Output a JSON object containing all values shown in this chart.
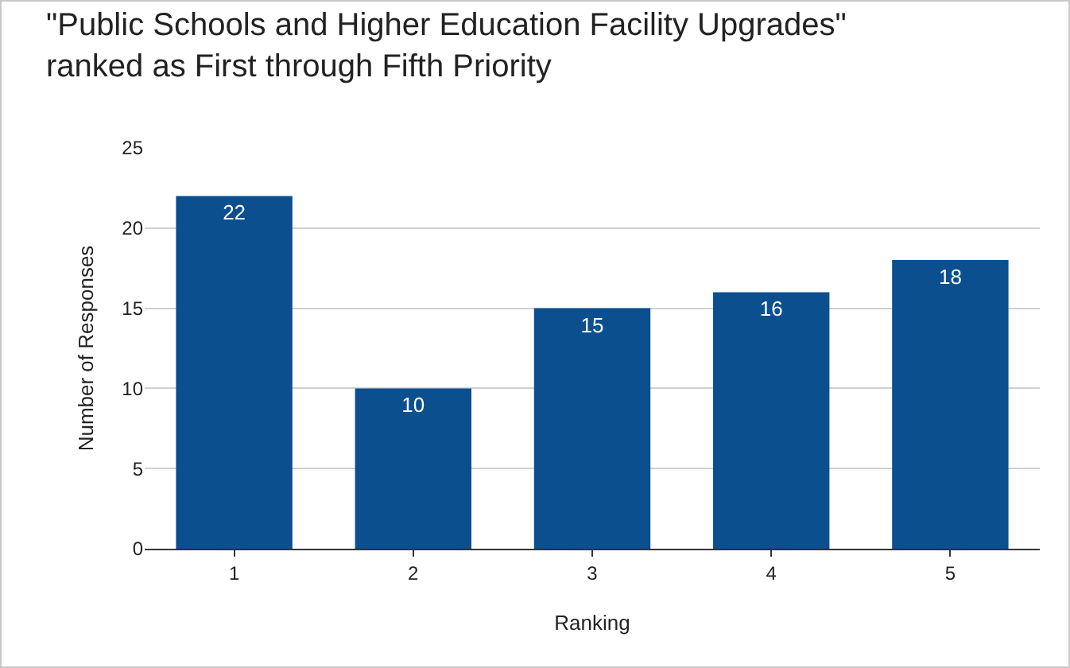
{
  "chart_data": {
    "type": "bar",
    "title": "\"Public Schools and Higher Education Facility Upgrades\"\nranked as First through Fifth Priority",
    "xlabel": "Ranking",
    "ylabel": "Number of Responses",
    "categories": [
      "1",
      "2",
      "3",
      "4",
      "5"
    ],
    "values": [
      22,
      10,
      15,
      16,
      18
    ],
    "color": "#0b4f8f",
    "ylim": [
      0,
      25
    ],
    "yticks": [
      0,
      5,
      10,
      15,
      20,
      25
    ],
    "grid": "y",
    "data_labels": true
  }
}
